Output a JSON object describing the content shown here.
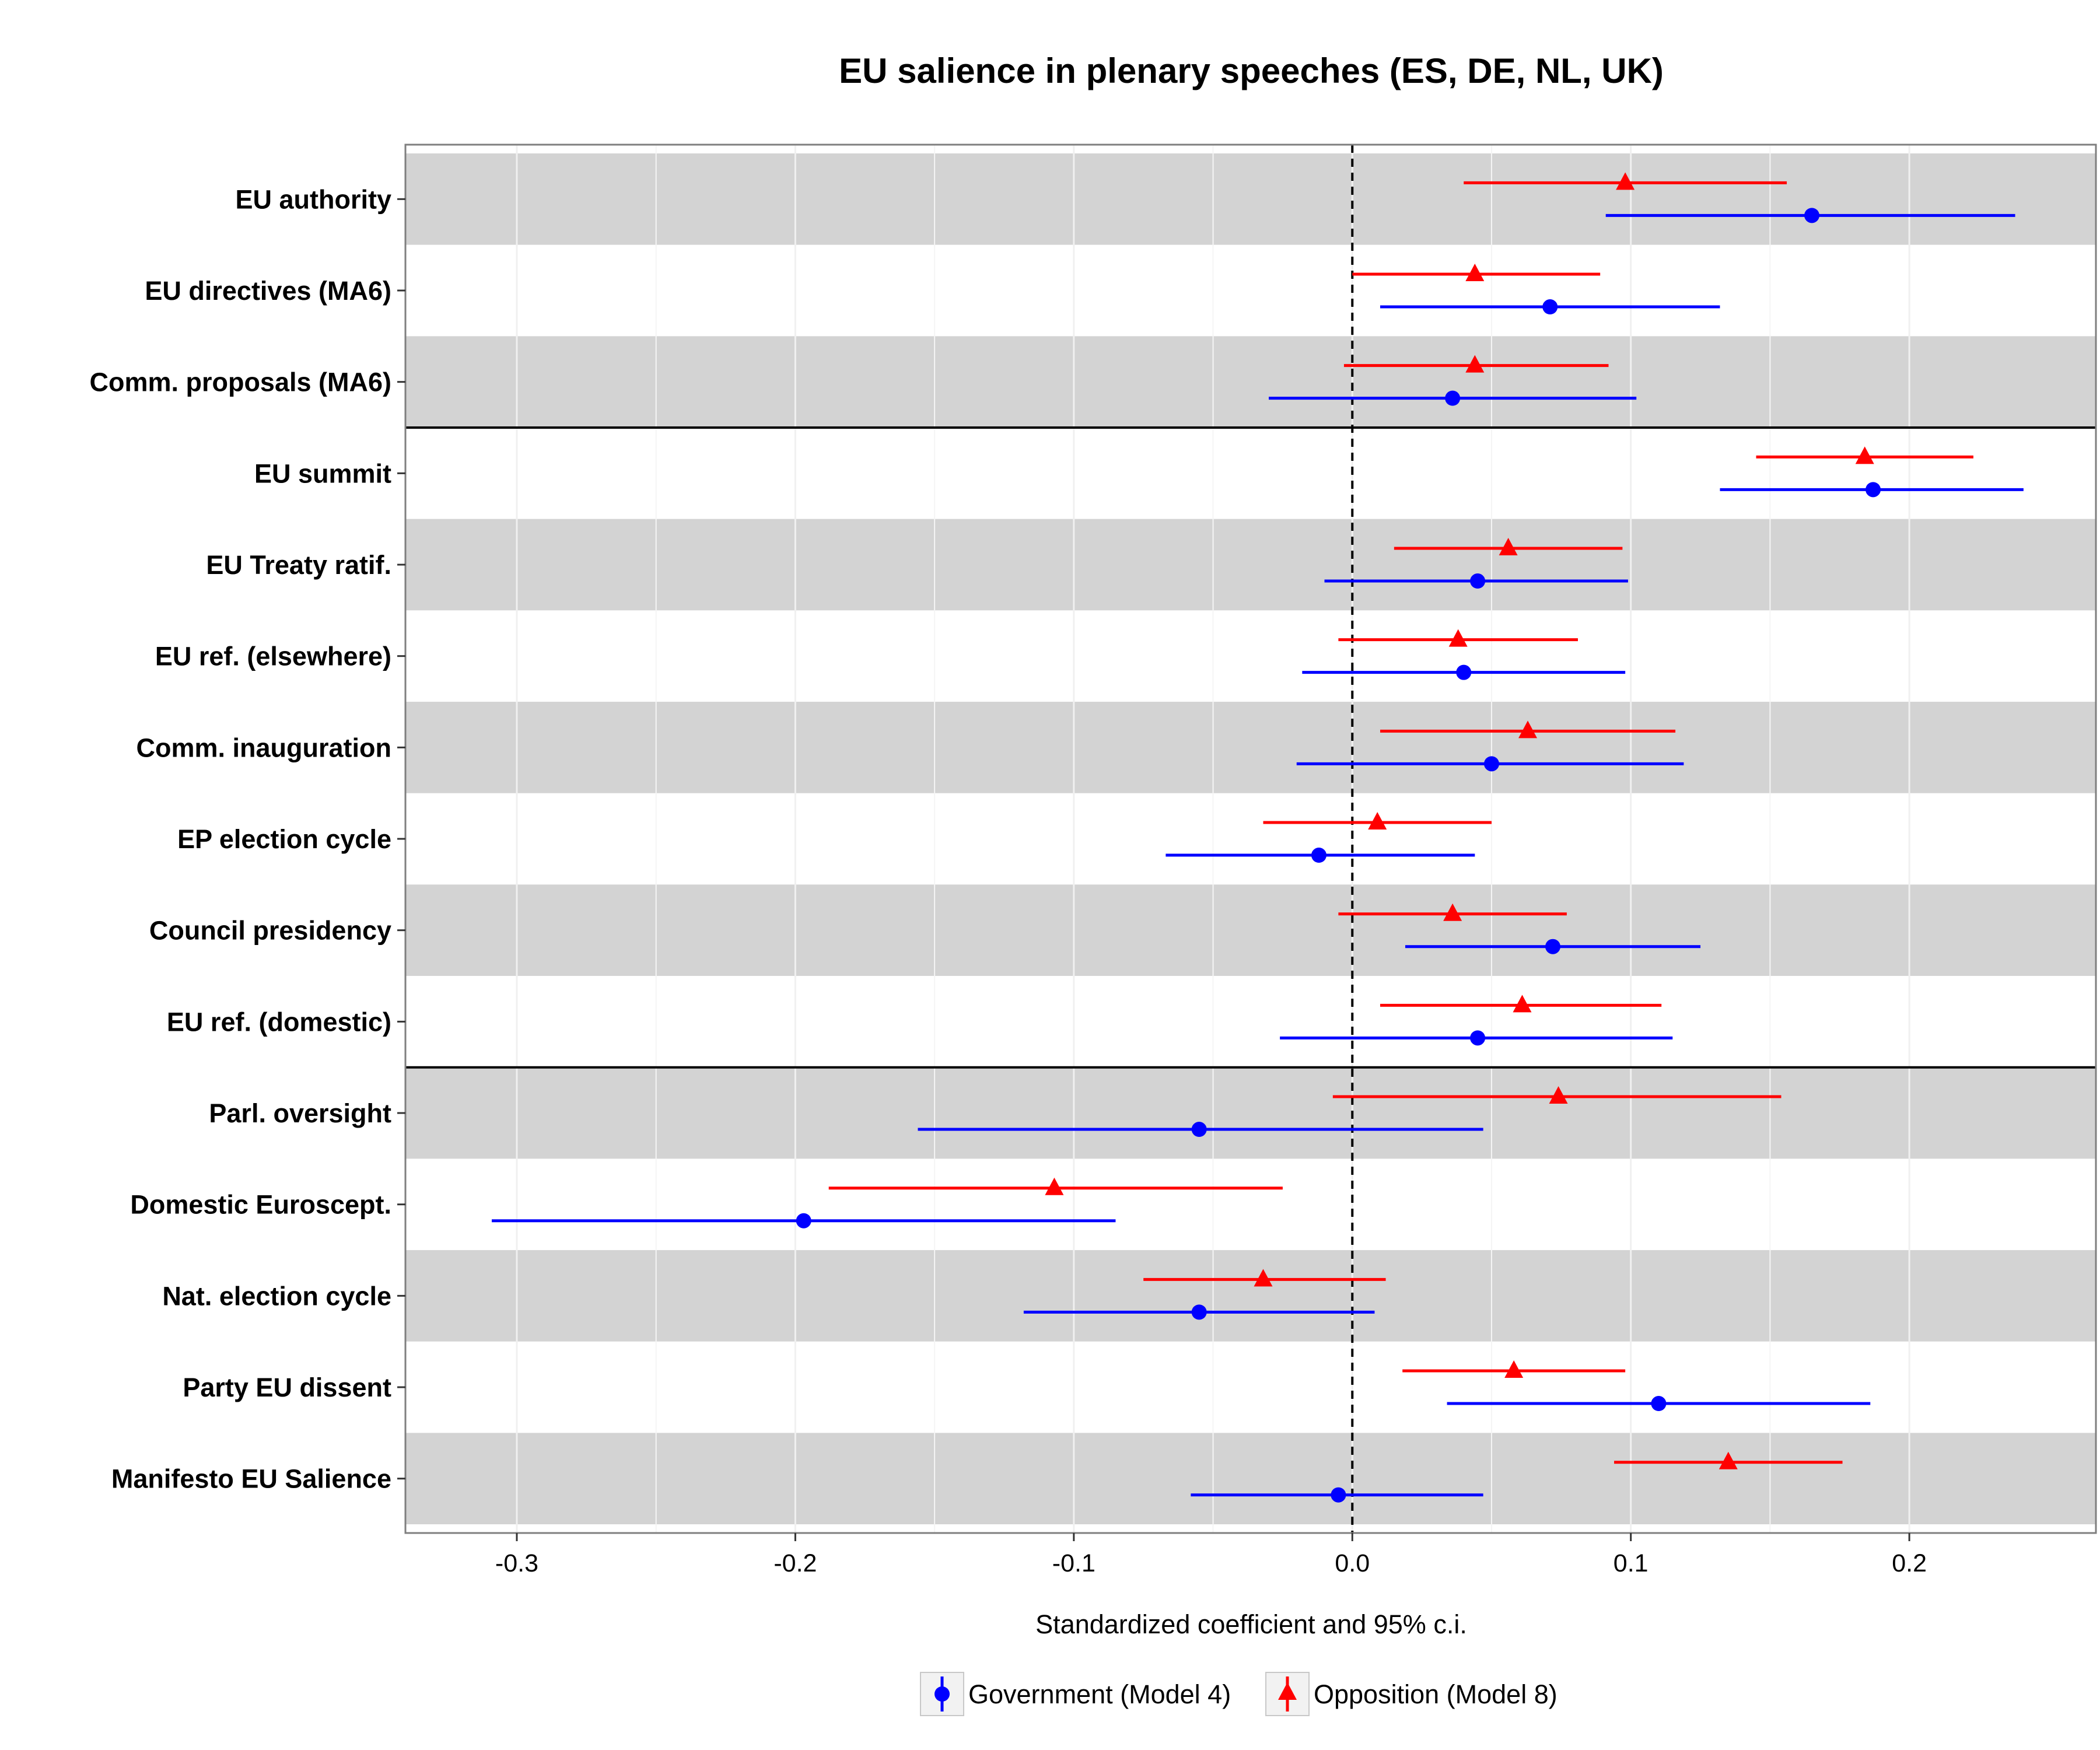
{
  "chart_data": {
    "type": "coefficient-plot",
    "title": "EU salience in plenary speeches (ES, DE, NL, UK)",
    "xlabel": "Standardized coefficient and 95% c.i.",
    "ylabel": "",
    "xlim": [
      -0.34,
      0.267
    ],
    "x_ticks": [
      -0.3,
      -0.2,
      -0.1,
      0.0,
      0.1,
      0.2
    ],
    "x_tick_labels": [
      "-0.3",
      "-0.2",
      "-0.1",
      "0.0",
      "0.1",
      "0.2"
    ],
    "reference_line": 0,
    "grid": true,
    "legend_position": "bottom",
    "categories": [
      "EU authority",
      "EU directives (MA6)",
      "Comm. proposals (MA6)",
      "EU summit",
      "EU Treaty ratif.",
      "EU ref. (elsewhere)",
      "Comm. inauguration",
      "EP election cycle",
      "Council presidency",
      "EU ref. (domestic)",
      "Parl. oversight",
      "Domestic Euroscept.",
      "Nat. election cycle",
      "Party EU dissent",
      "Manifesto EU Salience"
    ],
    "group_separators_after": [
      2,
      9
    ],
    "series": [
      {
        "name": "Government (Model 4)",
        "color": "#0000ff",
        "marker": "circle",
        "estimate": [
          0.165,
          0.071,
          0.036,
          0.187,
          0.045,
          0.04,
          0.05,
          -0.012,
          0.072,
          0.045,
          -0.055,
          -0.197,
          -0.055,
          0.11,
          -0.005
        ],
        "lower": [
          0.091,
          0.01,
          -0.03,
          0.132,
          -0.01,
          -0.018,
          -0.02,
          -0.067,
          0.019,
          -0.026,
          -0.156,
          -0.309,
          -0.118,
          0.034,
          -0.058
        ],
        "upper": [
          0.238,
          0.132,
          0.102,
          0.241,
          0.099,
          0.098,
          0.119,
          0.044,
          0.125,
          0.115,
          0.047,
          -0.085,
          0.008,
          0.186,
          0.047
        ]
      },
      {
        "name": "Opposition (Model 8)",
        "color": "#ff0000",
        "marker": "triangle",
        "estimate": [
          0.098,
          0.044,
          0.044,
          0.184,
          0.056,
          0.038,
          0.063,
          0.009,
          0.036,
          0.061,
          0.074,
          -0.107,
          -0.032,
          0.058,
          0.135
        ],
        "lower": [
          0.04,
          0.0,
          -0.003,
          0.145,
          0.015,
          -0.005,
          0.01,
          -0.032,
          -0.005,
          0.01,
          -0.007,
          -0.188,
          -0.075,
          0.018,
          0.094
        ],
        "upper": [
          0.156,
          0.089,
          0.092,
          0.223,
          0.097,
          0.081,
          0.116,
          0.05,
          0.077,
          0.111,
          0.154,
          -0.025,
          0.012,
          0.098,
          0.176
        ]
      }
    ]
  }
}
